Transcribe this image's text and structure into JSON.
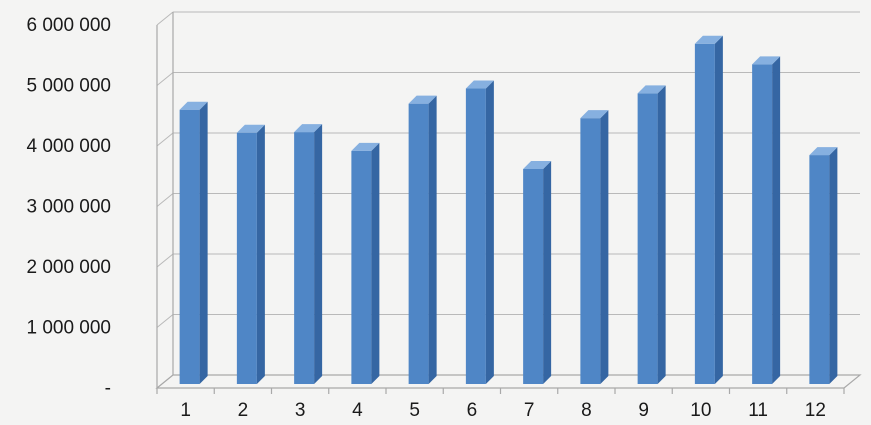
{
  "chart_data": {
    "type": "bar",
    "style": "3d-column",
    "categories": [
      "1",
      "2",
      "3",
      "4",
      "5",
      "6",
      "7",
      "8",
      "9",
      "10",
      "11",
      "12"
    ],
    "values": [
      4600000,
      4220000,
      4230000,
      3920000,
      4700000,
      4950000,
      3620000,
      4460000,
      4870000,
      5690000,
      5350000,
      3850000
    ],
    "y_tick_labels": [
      "-",
      "1 000 000",
      "2 000 000",
      "3 000 000",
      "4 000 000",
      "5 000 000",
      "6 000 000"
    ],
    "y_ticks": [
      0,
      1000000,
      2000000,
      3000000,
      4000000,
      5000000,
      6000000
    ],
    "ylim": [
      0,
      6000000
    ],
    "title": "",
    "xlabel": "",
    "ylabel": "",
    "grid": true,
    "legend": "none",
    "bar_color": "#4f86c6",
    "bar_top_color": "#86b0e0",
    "bar_side_color": "#3566a3"
  }
}
